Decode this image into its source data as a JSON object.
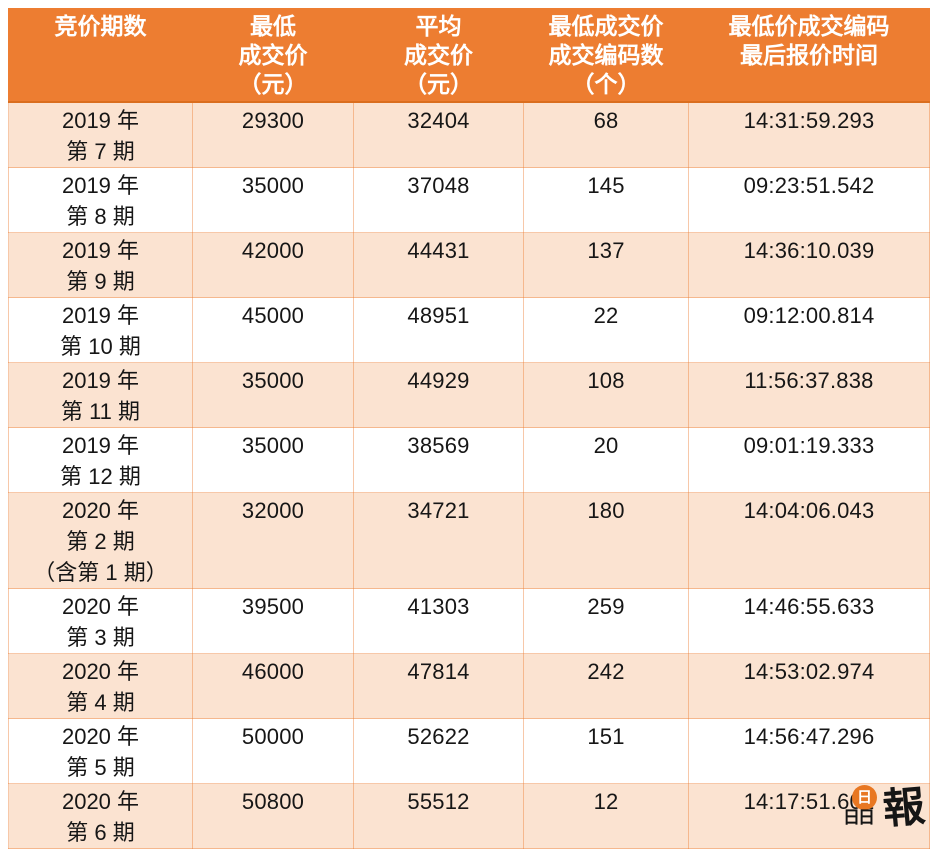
{
  "colors": {
    "header_bg": "#ED7D31",
    "header_text": "#FFFFFF",
    "row_shaded_bg": "#FBE3D1",
    "row_plain_bg": "#FFFFFF",
    "grid_border": "#F4B183",
    "body_text": "#161616",
    "logo_orange": "#E87722",
    "logo_black": "#151515"
  },
  "chart_data": {
    "type": "table",
    "title": "",
    "columns": [
      {
        "id": "period",
        "lines": [
          "竞价期数"
        ]
      },
      {
        "id": "min_price",
        "lines": [
          "最低",
          "成交价",
          "（元）"
        ]
      },
      {
        "id": "avg_price",
        "lines": [
          "平均",
          "成交价",
          "（元）"
        ]
      },
      {
        "id": "code_count",
        "lines": [
          "最低成交价",
          "成交编码数",
          "（个）"
        ]
      },
      {
        "id": "last_quote_time",
        "lines": [
          "最低价成交编码",
          "最后报价时间"
        ]
      }
    ],
    "rows": [
      {
        "period_lines": [
          "2019 年",
          "第 7 期"
        ],
        "min_price": "29300",
        "avg_price": "32404",
        "code_count": "68",
        "last_quote_time": "14:31:59.293"
      },
      {
        "period_lines": [
          "2019 年",
          "第 8 期"
        ],
        "min_price": "35000",
        "avg_price": "37048",
        "code_count": "145",
        "last_quote_time": "09:23:51.542"
      },
      {
        "period_lines": [
          "2019 年",
          "第 9 期"
        ],
        "min_price": "42000",
        "avg_price": "44431",
        "code_count": "137",
        "last_quote_time": "14:36:10.039"
      },
      {
        "period_lines": [
          "2019 年",
          "第 10 期"
        ],
        "min_price": "45000",
        "avg_price": "48951",
        "code_count": "22",
        "last_quote_time": "09:12:00.814"
      },
      {
        "period_lines": [
          "2019 年",
          "第 11 期"
        ],
        "min_price": "35000",
        "avg_price": "44929",
        "code_count": "108",
        "last_quote_time": "11:56:37.838"
      },
      {
        "period_lines": [
          "2019 年",
          "第 12 期"
        ],
        "min_price": "35000",
        "avg_price": "38569",
        "code_count": "20",
        "last_quote_time": "09:01:19.333"
      },
      {
        "period_lines": [
          "2020 年",
          "第 2 期",
          "（含第 1 期）"
        ],
        "min_price": "32000",
        "avg_price": "34721",
        "code_count": "180",
        "last_quote_time": "14:04:06.043"
      },
      {
        "period_lines": [
          "2020 年",
          "第 3 期"
        ],
        "min_price": "39500",
        "avg_price": "41303",
        "code_count": "259",
        "last_quote_time": "14:46:55.633"
      },
      {
        "period_lines": [
          "2020 年",
          "第 4 期"
        ],
        "min_price": "46000",
        "avg_price": "47814",
        "code_count": "242",
        "last_quote_time": "14:53:02.974"
      },
      {
        "period_lines": [
          "2020 年",
          "第 5 期"
        ],
        "min_price": "50000",
        "avg_price": "52622",
        "code_count": "151",
        "last_quote_time": "14:56:47.296"
      },
      {
        "period_lines": [
          "2020 年",
          "第 6 期"
        ],
        "min_price": "50800",
        "avg_price": "55512",
        "code_count": "12",
        "last_quote_time": "14:17:51.601"
      }
    ]
  },
  "watermark": {
    "logo_text": "晶報",
    "top_char": "日",
    "bottom_chars": "日日",
    "right_char": "報"
  }
}
